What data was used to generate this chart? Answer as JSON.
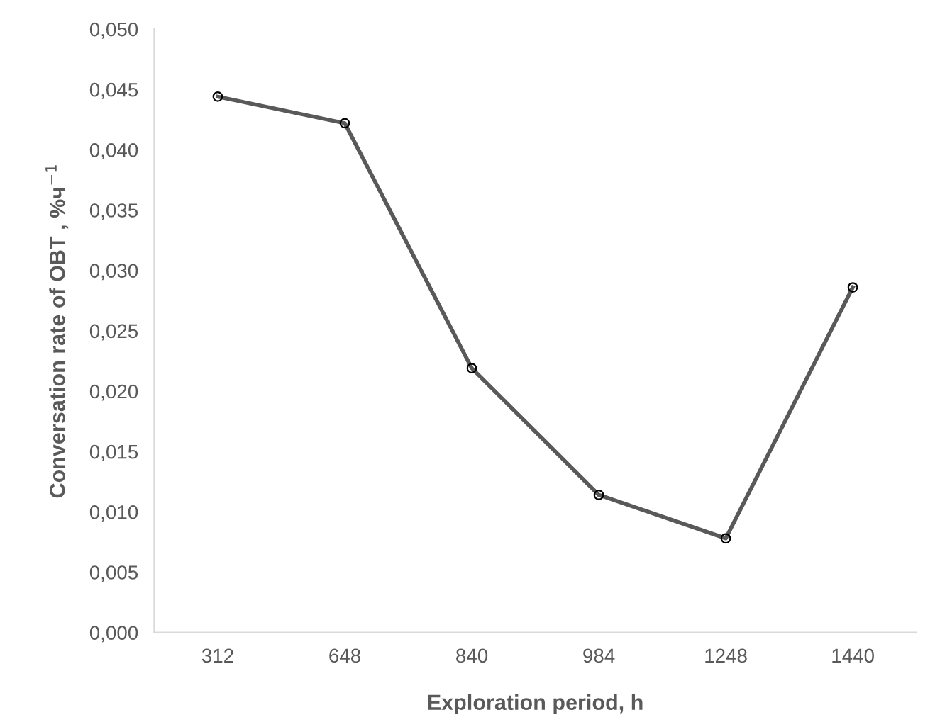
{
  "chart_data": {
    "type": "line",
    "xlabel": "Exploration period, h",
    "ylabel": "Conversation rate of OBT , %ч$^{−1}$",
    "categories": [
      "312",
      "648",
      "840",
      "984",
      "1248",
      "1440"
    ],
    "series": [
      {
        "color": "#595959",
        "values": [
          0.0444,
          0.0422,
          0.0219,
          0.0114,
          0.0078,
          0.0286
        ]
      }
    ],
    "ylim": [
      0,
      0.05
    ],
    "yticks": [
      {
        "value": 0,
        "label": "0,000"
      },
      {
        "value": 0.005,
        "label": "0,005"
      },
      {
        "value": 0.01,
        "label": "0,010"
      },
      {
        "value": 0.015,
        "label": "0,015"
      },
      {
        "value": 0.02,
        "label": "0,020"
      },
      {
        "value": 0.025,
        "label": "0,025"
      },
      {
        "value": 0.03,
        "label": "0,030"
      },
      {
        "value": 0.035,
        "label": "0,035"
      },
      {
        "value": 0.04,
        "label": "0,040"
      },
      {
        "value": 0.045,
        "label": "0,045"
      },
      {
        "value": 0.05,
        "label": "0,050"
      }
    ],
    "marker": "circle",
    "line_style": "solid",
    "grid": false,
    "legend": false
  }
}
